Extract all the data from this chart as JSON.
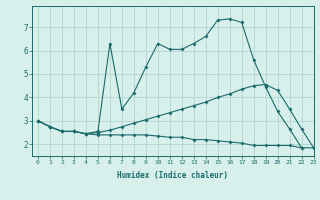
{
  "xlabel": "Humidex (Indice chaleur)",
  "xlim": [
    -0.5,
    23
  ],
  "ylim": [
    1.5,
    7.9
  ],
  "xticks": [
    0,
    1,
    2,
    3,
    4,
    5,
    6,
    7,
    8,
    9,
    10,
    11,
    12,
    13,
    14,
    15,
    16,
    17,
    18,
    19,
    20,
    21,
    22,
    23
  ],
  "yticks": [
    2,
    3,
    4,
    5,
    6,
    7
  ],
  "bg_color": "#d8f0ec",
  "line_color": "#1a6b6b",
  "grid_color": "#b8d8d4",
  "line1_x": [
    0,
    1,
    2,
    3,
    4,
    5,
    6,
    7,
    8,
    9,
    10,
    11,
    12,
    13,
    14,
    15,
    16,
    17,
    18,
    19,
    20,
    21,
    22
  ],
  "line1_y": [
    3.0,
    2.75,
    2.55,
    2.55,
    2.45,
    2.55,
    6.3,
    3.5,
    4.2,
    5.3,
    6.3,
    6.05,
    6.05,
    6.3,
    6.6,
    7.3,
    7.35,
    7.2,
    5.6,
    4.45,
    3.4,
    2.65,
    1.85
  ],
  "line2_x": [
    0,
    1,
    2,
    3,
    4,
    5,
    6,
    7,
    8,
    9,
    10,
    11,
    12,
    13,
    14,
    15,
    16,
    17,
    18,
    19,
    20,
    21,
    22,
    23
  ],
  "line2_y": [
    3.0,
    2.75,
    2.55,
    2.55,
    2.45,
    2.5,
    2.6,
    2.75,
    2.9,
    3.05,
    3.2,
    3.35,
    3.5,
    3.65,
    3.8,
    4.0,
    4.15,
    4.35,
    4.5,
    4.55,
    4.3,
    3.5,
    2.65,
    1.85
  ],
  "line3_x": [
    0,
    1,
    2,
    3,
    4,
    5,
    6,
    7,
    8,
    9,
    10,
    11,
    12,
    13,
    14,
    15,
    16,
    17,
    18,
    19,
    20,
    21,
    22,
    23
  ],
  "line3_y": [
    3.0,
    2.75,
    2.55,
    2.55,
    2.45,
    2.4,
    2.4,
    2.4,
    2.4,
    2.4,
    2.35,
    2.3,
    2.3,
    2.2,
    2.2,
    2.15,
    2.1,
    2.05,
    1.95,
    1.95,
    1.95,
    1.95,
    1.85,
    1.85
  ]
}
